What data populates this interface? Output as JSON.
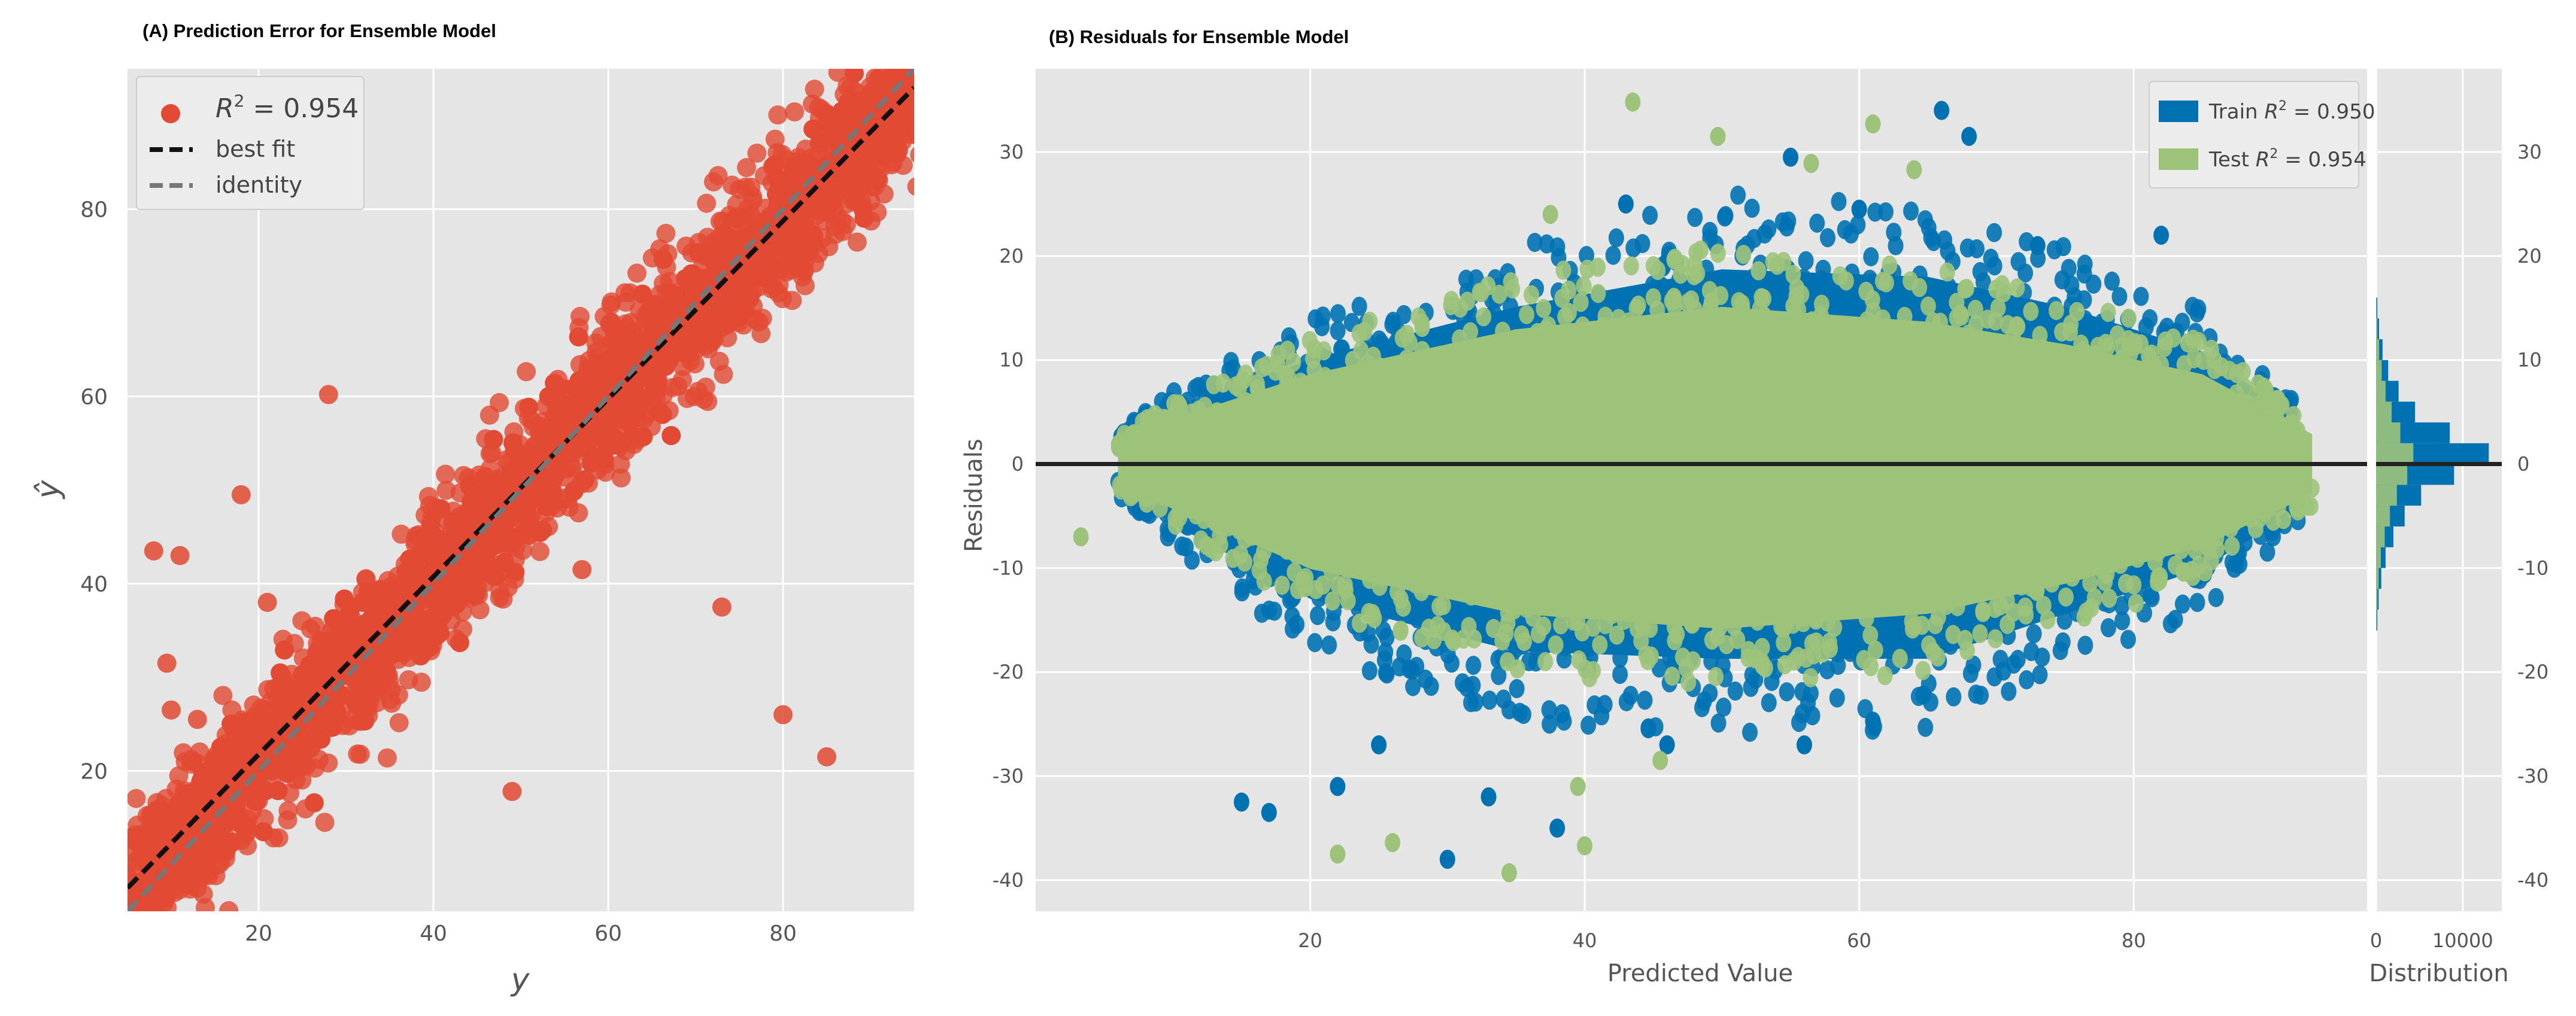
{
  "titles": {
    "a": "(A) Prediction Error for Ensemble Model",
    "b": "(B) Residuals for Ensemble Model"
  },
  "colors": {
    "bg": "#e5e5e5",
    "red": "#e24a33",
    "blue": "#0072b2",
    "green": "#9dc37a",
    "black_line": "#222222",
    "identity": "#777777"
  },
  "chart_data": [
    {
      "type": "scatter",
      "title": "(A) Prediction Error for Ensemble Model",
      "xlabel": "y",
      "ylabel": "ŷ",
      "xlim": [
        5,
        95
      ],
      "ylim": [
        5,
        95
      ],
      "xticks": [
        "20",
        "40",
        "60",
        "80"
      ],
      "yticks": [
        "20",
        "40",
        "60",
        "80"
      ],
      "grid": true,
      "legend_position": "top-left",
      "legend": {
        "r2_symbol": "R",
        "r2_sup": "2",
        "r2_value": "= 0.954",
        "best_fit_label": "best fit",
        "identity_label": "identity"
      },
      "series": [
        {
          "name": "R² = 0.954",
          "color": "#e24a33",
          "description": "dense band of points around the diagonal",
          "band_center": [
            [
              5,
              7
            ],
            [
              95,
              93
            ]
          ],
          "band_halfwidth": 10,
          "outliers": [
            [
              8,
              43.5
            ],
            [
              18,
              49.5
            ],
            [
              28,
              60.2
            ],
            [
              13,
              25.5
            ],
            [
              73,
              37.5
            ],
            [
              80,
              26
            ],
            [
              85,
              21.5
            ],
            [
              57,
              41.5
            ],
            [
              49,
              17.8
            ],
            [
              9.5,
              31.5
            ],
            [
              10,
              26.5
            ],
            [
              11,
              43
            ],
            [
              21,
              38
            ]
          ]
        }
      ],
      "lines": [
        {
          "name": "best fit",
          "style": "dashed",
          "color": "#111111",
          "points": [
            [
              5,
              7.5
            ],
            [
              95,
              93
            ]
          ]
        },
        {
          "name": "identity",
          "style": "dashed",
          "color": "#777777",
          "points": [
            [
              5,
              5
            ],
            [
              95,
              95
            ]
          ]
        }
      ]
    },
    {
      "type": "scatter",
      "title": "(B) Residuals for Ensemble Model",
      "xlabel": "Predicted Value",
      "ylabel": "Residuals",
      "xlim": [
        0,
        97
      ],
      "ylim": [
        -43,
        38
      ],
      "xticks": [
        "20",
        "40",
        "60",
        "80"
      ],
      "yticks": [
        "30",
        "20",
        "10",
        "0",
        "-10",
        "-20",
        "-30",
        "-40"
      ],
      "grid": true,
      "legend_position": "top-right",
      "legend": {
        "train_label": "Train ",
        "test_label": "Test ",
        "r_symbol": "R",
        "r_sup": "2",
        "train_value": " = 0.950",
        "test_value": " = 0.954"
      },
      "series": [
        {
          "name": "Train R² = 0.950",
          "color": "#0072b2",
          "description": "residual cloud",
          "envelope_upper": [
            [
              6,
              3
            ],
            [
              10,
              7
            ],
            [
              20,
              14
            ],
            [
              35,
              21
            ],
            [
              50,
              26
            ],
            [
              65,
              25
            ],
            [
              75,
              21
            ],
            [
              85,
              15
            ],
            [
              92,
              6
            ]
          ],
          "envelope_lower": [
            [
              6,
              -3
            ],
            [
              10,
              -8
            ],
            [
              20,
              -18
            ],
            [
              35,
              -25
            ],
            [
              50,
              -26
            ],
            [
              65,
              -26
            ],
            [
              75,
              -20
            ],
            [
              85,
              -14
            ],
            [
              92,
              -6
            ]
          ],
          "outliers": [
            [
              15,
              -32.5
            ],
            [
              17,
              -33.5
            ],
            [
              30,
              -38
            ],
            [
              22,
              -31
            ],
            [
              33,
              -32
            ],
            [
              43,
              25
            ],
            [
              66,
              34
            ],
            [
              68,
              31.5
            ],
            [
              55,
              29.5
            ],
            [
              60,
              24.5
            ],
            [
              73,
              21
            ],
            [
              82,
              22
            ],
            [
              25,
              -27
            ],
            [
              38,
              -35
            ],
            [
              56,
              -27
            ],
            [
              46,
              -27
            ]
          ]
        },
        {
          "name": "Test R² = 0.954",
          "color": "#9dc37a",
          "description": "residual cloud (drawn on top)",
          "envelope_upper": [
            [
              6,
              2.5
            ],
            [
              10,
              6
            ],
            [
              20,
              12
            ],
            [
              35,
              18
            ],
            [
              50,
              21
            ],
            [
              65,
              19
            ],
            [
              75,
              16
            ],
            [
              85,
              12
            ],
            [
              93,
              4
            ]
          ],
          "envelope_lower": [
            [
              6,
              -2.5
            ],
            [
              10,
              -6
            ],
            [
              20,
              -14
            ],
            [
              35,
              -20
            ],
            [
              50,
              -22
            ],
            [
              65,
              -20
            ],
            [
              75,
              -16
            ],
            [
              85,
              -11
            ],
            [
              93,
              -4
            ]
          ],
          "outliers": [
            [
              43.5,
              34.8
            ],
            [
              49.7,
              31.5
            ],
            [
              61,
              32.7
            ],
            [
              64,
              28.3
            ],
            [
              3.3,
              -7
            ],
            [
              22,
              -37.5
            ],
            [
              26,
              -36.4
            ],
            [
              34.5,
              -39.3
            ],
            [
              40,
              -36.7
            ],
            [
              56.5,
              28.9
            ],
            [
              45.5,
              -28.5
            ],
            [
              39.5,
              -31
            ],
            [
              37.5,
              24
            ]
          ]
        }
      ],
      "zero_line": 0,
      "distribution": {
        "xlabel": "Distribution",
        "xticks": [
          "0",
          "10000"
        ],
        "xlim": [
          0,
          14500
        ],
        "bins": [
          {
            "lo": -16,
            "hi": -14,
            "train": 150,
            "test": 80
          },
          {
            "lo": -14,
            "hi": -12,
            "train": 300,
            "test": 150
          },
          {
            "lo": -12,
            "hi": -10,
            "train": 600,
            "test": 300
          },
          {
            "lo": -10,
            "hi": -8,
            "train": 1100,
            "test": 550
          },
          {
            "lo": -8,
            "hi": -6,
            "train": 2000,
            "test": 1000
          },
          {
            "lo": -6,
            "hi": -4,
            "train": 3300,
            "test": 1600
          },
          {
            "lo": -4,
            "hi": -2,
            "train": 5200,
            "test": 2400
          },
          {
            "lo": -2,
            "hi": 0,
            "train": 9000,
            "test": 3600
          },
          {
            "lo": 0,
            "hi": 2,
            "train": 13000,
            "test": 4300
          },
          {
            "lo": 2,
            "hi": 4,
            "train": 8500,
            "test": 2800
          },
          {
            "lo": 4,
            "hi": 6,
            "train": 4500,
            "test": 1800
          },
          {
            "lo": 6,
            "hi": 8,
            "train": 2600,
            "test": 1100
          },
          {
            "lo": 8,
            "hi": 10,
            "train": 1400,
            "test": 650
          },
          {
            "lo": 10,
            "hi": 12,
            "train": 750,
            "test": 350
          },
          {
            "lo": 12,
            "hi": 14,
            "train": 350,
            "test": 150
          },
          {
            "lo": 14,
            "hi": 16,
            "train": 150,
            "test": 60
          }
        ]
      }
    }
  ]
}
